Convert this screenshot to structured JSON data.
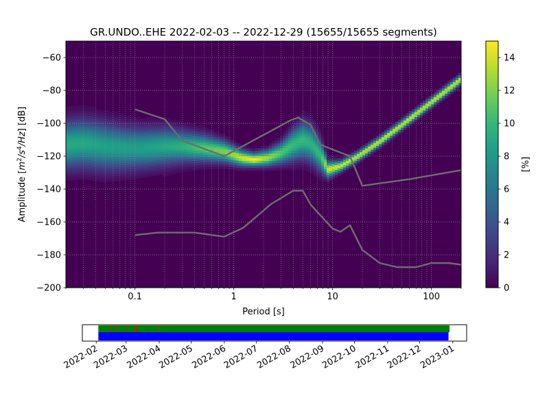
{
  "chart_data": [
    {
      "type": "heatmap",
      "title": "GR.UNDO..EHE   2022-02-03 -- 2022-12-29  (15655/15655 segments)",
      "xlabel": "Period [s]",
      "ylabel_parts": [
        "Amplitude [",
        "m",
        "2",
        "/s",
        "4",
        "/Hz",
        "] [dB]"
      ],
      "x_scale": "log",
      "xlim": [
        0.02,
        200
      ],
      "ylim": [
        -200,
        -50
      ],
      "x_ticks": [
        {
          "value": 0.1,
          "label": "0.1"
        },
        {
          "value": 1,
          "label": "1"
        },
        {
          "value": 10,
          "label": "10"
        },
        {
          "value": 100,
          "label": "100"
        }
      ],
      "y_ticks": [
        {
          "value": -60,
          "label": "−60"
        },
        {
          "value": -80,
          "label": "−80"
        },
        {
          "value": -100,
          "label": "−100"
        },
        {
          "value": -120,
          "label": "−120"
        },
        {
          "value": -140,
          "label": "−140"
        },
        {
          "value": -160,
          "label": "−160"
        },
        {
          "value": -180,
          "label": "−180"
        },
        {
          "value": -200,
          "label": "−200"
        }
      ],
      "grid": true,
      "colormap": "viridis",
      "colorbar": {
        "label": "[%]",
        "range": [
          0,
          15
        ],
        "ticks": [
          {
            "value": 0,
            "label": "0"
          },
          {
            "value": 2,
            "label": "2"
          },
          {
            "value": 4,
            "label": "4"
          },
          {
            "value": 6,
            "label": "6"
          },
          {
            "value": 8,
            "label": "8"
          },
          {
            "value": 10,
            "label": "10"
          },
          {
            "value": 12,
            "label": "12"
          },
          {
            "value": 14,
            "label": "14"
          }
        ]
      },
      "density_ridge": [
        {
          "period": 0.02,
          "center_db": -113,
          "width_db": 9,
          "peak_pct": 9
        },
        {
          "period": 0.03,
          "center_db": -112,
          "width_db": 9,
          "peak_pct": 9
        },
        {
          "period": 0.05,
          "center_db": -114,
          "width_db": 9,
          "peak_pct": 8.5
        },
        {
          "period": 0.08,
          "center_db": -115,
          "width_db": 8,
          "peak_pct": 8.5
        },
        {
          "period": 0.12,
          "center_db": -115,
          "width_db": 7.5,
          "peak_pct": 8.5
        },
        {
          "period": 0.2,
          "center_db": -114,
          "width_db": 7,
          "peak_pct": 9
        },
        {
          "period": 0.3,
          "center_db": -114,
          "width_db": 6,
          "peak_pct": 9.5
        },
        {
          "period": 0.5,
          "center_db": -115,
          "width_db": 5,
          "peak_pct": 11
        },
        {
          "period": 0.8,
          "center_db": -117,
          "width_db": 4,
          "peak_pct": 12
        },
        {
          "period": 1.2,
          "center_db": -121,
          "width_db": 3,
          "peak_pct": 14
        },
        {
          "period": 1.6,
          "center_db": -122,
          "width_db": 2.5,
          "peak_pct": 15
        },
        {
          "period": 2.2,
          "center_db": -121,
          "width_db": 3,
          "peak_pct": 13
        },
        {
          "period": 3.0,
          "center_db": -118,
          "width_db": 4,
          "peak_pct": 11
        },
        {
          "period": 4.0,
          "center_db": -113,
          "width_db": 6,
          "peak_pct": 10
        },
        {
          "period": 5.0,
          "center_db": -110,
          "width_db": 7,
          "peak_pct": 10
        },
        {
          "period": 6.0,
          "center_db": -112,
          "width_db": 7,
          "peak_pct": 9.5
        },
        {
          "period": 7.5,
          "center_db": -119,
          "width_db": 6,
          "peak_pct": 10
        },
        {
          "period": 9.0,
          "center_db": -128,
          "width_db": 3,
          "peak_pct": 14
        },
        {
          "period": 12,
          "center_db": -126,
          "width_db": 2,
          "peak_pct": 14
        },
        {
          "period": 18,
          "center_db": -120,
          "width_db": 1.8,
          "peak_pct": 14
        },
        {
          "period": 30,
          "center_db": -111,
          "width_db": 1.8,
          "peak_pct": 14
        },
        {
          "period": 50,
          "center_db": -101,
          "width_db": 1.8,
          "peak_pct": 14
        },
        {
          "period": 100,
          "center_db": -87,
          "width_db": 1.8,
          "peak_pct": 14
        },
        {
          "period": 200,
          "center_db": -73,
          "width_db": 1.8,
          "peak_pct": 14
        }
      ],
      "series": [
        {
          "x": [
            0.1,
            0.2,
            0.3,
            0.8,
            3.8,
            4.5,
            6.0,
            7.5,
            15,
            20,
            60,
            200
          ],
          "y": [
            -91.5,
            -97.5,
            -110.5,
            -120,
            -98,
            -96.5,
            -101,
            -113,
            -120,
            -138,
            -134,
            -128.5
          ]
        },
        {
          "x": [
            0.1,
            0.17,
            0.4,
            0.8,
            1.25,
            2.4,
            4.0,
            5.0,
            6.0,
            10,
            12,
            15,
            20,
            30,
            45,
            70,
            100,
            150,
            200
          ],
          "y": [
            -168,
            -166.5,
            -166.5,
            -169,
            -163.5,
            -149,
            -141,
            -141,
            -149.5,
            -164,
            -166,
            -162,
            -177,
            -185,
            -187.5,
            -187.5,
            -185,
            -185,
            -186
          ]
        }
      ]
    },
    {
      "type": "timeline",
      "x_ticks": [
        "2022-02",
        "2022-03",
        "2022-04",
        "2022-05",
        "2022-06",
        "2022-07",
        "2022-08",
        "2022-09",
        "2022-10",
        "2022-11",
        "2022-12",
        "2023-01"
      ],
      "xlim": [
        "2022-01-19",
        "2023-01-14"
      ],
      "data_range": [
        "2022-02-03",
        "2022-12-29"
      ],
      "bars": [
        {
          "row": "upper",
          "start": "2022-02-03",
          "end": "2022-12-29",
          "color": "#008000"
        },
        {
          "row": "lower",
          "start": "2022-02-03",
          "end": "2022-12-28",
          "color": "#0000ff"
        }
      ],
      "gap_marks": [
        "2022-02-15",
        "2022-02-20",
        "2022-03-01",
        "2022-03-09",
        "2022-03-10",
        "2022-03-11",
        "2022-03-31"
      ],
      "gap_color": "#ff0000"
    }
  ]
}
